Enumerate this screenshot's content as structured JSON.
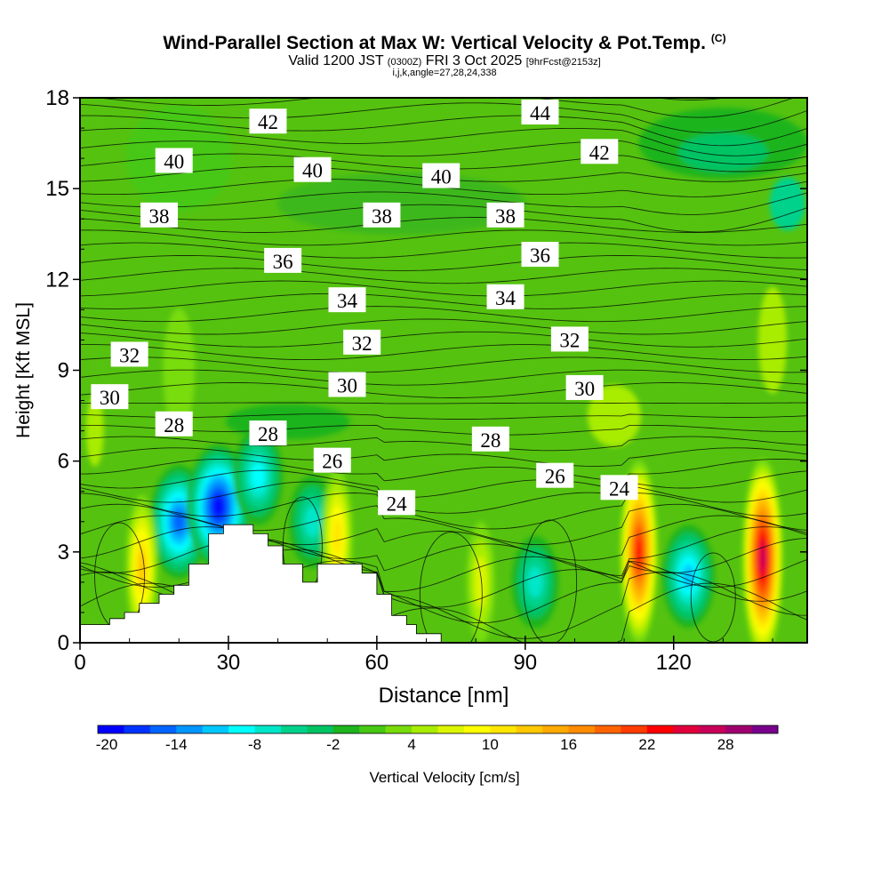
{
  "title": "Wind-Parallel Section at Max W: Vertical Velocity & Pot.Temp.",
  "copyright_mark": "(C)",
  "subtitle": {
    "valid_prefix": "Valid 1200 JST",
    "utc": "(0300Z)",
    "date": "FRI 3 Oct 2025",
    "forecast": "[9hrFcst@2153z]"
  },
  "subtitle2": "i,j,k,angle=27,28,24,338",
  "chart_data": {
    "type": "heatmap",
    "xlabel": "Distance [nm]",
    "ylabel": "Height [Kft MSL]",
    "xlim": [
      0,
      147
    ],
    "ylim": [
      0,
      18
    ],
    "xticks": [
      0,
      30,
      60,
      90,
      120
    ],
    "yticks": [
      0,
      3,
      6,
      9,
      12,
      15,
      18
    ],
    "colorbar": {
      "label": "Vertical Velocity [cm/s]",
      "tick_labels": [
        "-20",
        "-14",
        "-8",
        "-2",
        "4",
        "10",
        "16",
        "22",
        "28"
      ],
      "tick_values": [
        -20,
        -14,
        -8,
        -2,
        4,
        10,
        16,
        22,
        28
      ],
      "bins": [
        -20,
        -18,
        -16,
        -14,
        -12,
        -10,
        -8,
        -6,
        -4,
        -2,
        0,
        2,
        4,
        6,
        8,
        10,
        12,
        14,
        16,
        18,
        20,
        22,
        24,
        26,
        28,
        30,
        32
      ],
      "colors": [
        "#0000ff",
        "#0032ff",
        "#0064ff",
        "#0096ff",
        "#00c8ff",
        "#00ffff",
        "#00e6c8",
        "#00d28c",
        "#00c364",
        "#1eb41e",
        "#46c814",
        "#78dc0a",
        "#a8ec00",
        "#dcf500",
        "#ffff00",
        "#ffe600",
        "#ffc800",
        "#ffaa00",
        "#ff8c00",
        "#ff6400",
        "#ff3c00",
        "#ff0000",
        "#e1003c",
        "#c8005a",
        "#a0006e",
        "#78008c"
      ]
    },
    "updraft_cores": [
      {
        "x": 12.5,
        "y": 2.5,
        "w": 12
      },
      {
        "x": 52,
        "y": 3.5,
        "w": 10
      },
      {
        "x": 81,
        "y": 2.0,
        "w": 6
      },
      {
        "x": 113,
        "y": 3.0,
        "w": 22
      },
      {
        "x": 138,
        "y": 2.8,
        "w": 26
      }
    ],
    "downdraft_cores": [
      {
        "x": 20,
        "y": 4.0,
        "w": -16
      },
      {
        "x": 28,
        "y": 4.5,
        "w": -20
      },
      {
        "x": 36,
        "y": 5.5,
        "w": -10
      },
      {
        "x": 47,
        "y": 4.0,
        "w": -8
      },
      {
        "x": 92,
        "y": 2.0,
        "w": -8
      },
      {
        "x": 123,
        "y": 2.2,
        "w": -12
      }
    ],
    "terrain_kft": [
      [
        0,
        0.6
      ],
      [
        6,
        0.6
      ],
      [
        6,
        0.8
      ],
      [
        9,
        0.8
      ],
      [
        9,
        1.0
      ],
      [
        12,
        1.0
      ],
      [
        12,
        1.3
      ],
      [
        16,
        1.3
      ],
      [
        16,
        1.6
      ],
      [
        19,
        1.6
      ],
      [
        19,
        1.9
      ],
      [
        22,
        1.9
      ],
      [
        22,
        2.6
      ],
      [
        26,
        2.6
      ],
      [
        26,
        3.6
      ],
      [
        29,
        3.6
      ],
      [
        29,
        3.9
      ],
      [
        35,
        3.9
      ],
      [
        35,
        3.6
      ],
      [
        38,
        3.6
      ],
      [
        38,
        3.2
      ],
      [
        41,
        3.2
      ],
      [
        41,
        2.6
      ],
      [
        45,
        2.6
      ],
      [
        45,
        2.0
      ],
      [
        48,
        2.0
      ],
      [
        48,
        2.6
      ],
      [
        57,
        2.6
      ],
      [
        57,
        2.3
      ],
      [
        60,
        2.3
      ],
      [
        60,
        1.6
      ],
      [
        63,
        1.6
      ],
      [
        63,
        0.9
      ],
      [
        66,
        0.9
      ],
      [
        66,
        0.6
      ],
      [
        68,
        0.6
      ],
      [
        68,
        0.3
      ],
      [
        73,
        0.3
      ],
      [
        73,
        0
      ]
    ],
    "theta_isentropes_C": [
      24,
      26,
      28,
      30,
      32,
      34,
      36,
      38,
      40,
      42,
      44
    ],
    "contour_labels": [
      {
        "text": "42",
        "x": 38,
        "y": 17.2
      },
      {
        "text": "44",
        "x": 93,
        "y": 17.5
      },
      {
        "text": "40",
        "x": 19,
        "y": 15.9
      },
      {
        "text": "40",
        "x": 47,
        "y": 15.6
      },
      {
        "text": "40",
        "x": 73,
        "y": 15.4
      },
      {
        "text": "42",
        "x": 105,
        "y": 16.2
      },
      {
        "text": "38",
        "x": 16,
        "y": 14.1
      },
      {
        "text": "38",
        "x": 61,
        "y": 14.1
      },
      {
        "text": "38",
        "x": 86,
        "y": 14.1
      },
      {
        "text": "36",
        "x": 41,
        "y": 12.6
      },
      {
        "text": "36",
        "x": 93,
        "y": 12.8
      },
      {
        "text": "34",
        "x": 54,
        "y": 11.3
      },
      {
        "text": "34",
        "x": 86,
        "y": 11.4
      },
      {
        "text": "32",
        "x": 10,
        "y": 9.5
      },
      {
        "text": "32",
        "x": 57,
        "y": 9.9
      },
      {
        "text": "32",
        "x": 99,
        "y": 10.0
      },
      {
        "text": "30",
        "x": 6,
        "y": 8.1
      },
      {
        "text": "30",
        "x": 54,
        "y": 8.5
      },
      {
        "text": "30",
        "x": 102,
        "y": 8.4
      },
      {
        "text": "28",
        "x": 19,
        "y": 7.2
      },
      {
        "text": "28",
        "x": 38,
        "y": 6.9
      },
      {
        "text": "28",
        "x": 83,
        "y": 6.7
      },
      {
        "text": "26",
        "x": 51,
        "y": 6.0
      },
      {
        "text": "26",
        "x": 96,
        "y": 5.5
      },
      {
        "text": "24",
        "x": 64,
        "y": 4.6
      },
      {
        "text": "24",
        "x": 109,
        "y": 5.1
      }
    ]
  }
}
